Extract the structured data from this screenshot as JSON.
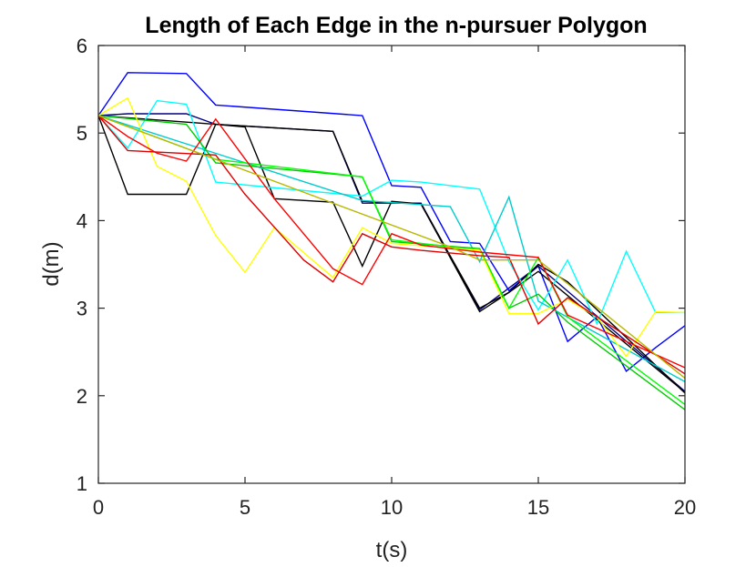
{
  "chart_data": {
    "type": "line",
    "title": "Length of Each Edge in the n-pursuer Polygon",
    "xlabel": "t(s)",
    "ylabel": "d(m)",
    "xlim": [
      0,
      20
    ],
    "ylim": [
      1,
      6
    ],
    "xticks": [
      0,
      5,
      10,
      15,
      20
    ],
    "yticks": [
      1,
      2,
      3,
      4,
      5,
      6
    ],
    "xtick_labels": [
      "0",
      "5",
      "10",
      "15",
      "20"
    ],
    "ytick_labels": [
      "1",
      "2",
      "3",
      "4",
      "5",
      "6"
    ],
    "grid": false,
    "legend": "none",
    "series": [
      {
        "color": "#0000ff",
        "points": [
          [
            0,
            5.2
          ],
          [
            1,
            5.69
          ],
          [
            3,
            5.68
          ],
          [
            4,
            5.32
          ],
          [
            9,
            5.2
          ],
          [
            10,
            4.4
          ],
          [
            11,
            4.38
          ],
          [
            12,
            3.76
          ],
          [
            13,
            3.74
          ],
          [
            14,
            3.2
          ],
          [
            15,
            3.48
          ],
          [
            16,
            2.62
          ],
          [
            17,
            2.9
          ],
          [
            18,
            2.28
          ],
          [
            19,
            2.55
          ],
          [
            20,
            2.8
          ]
        ]
      },
      {
        "color": "#000080",
        "points": [
          [
            0,
            5.2
          ],
          [
            1,
            5.22
          ],
          [
            3,
            5.22
          ],
          [
            4,
            5.1
          ],
          [
            8,
            5.02
          ],
          [
            9,
            4.2
          ],
          [
            11,
            4.2
          ],
          [
            13,
            2.98
          ],
          [
            15,
            3.48
          ],
          [
            20,
            2.05
          ]
        ]
      },
      {
        "color": "#000000",
        "points": [
          [
            0,
            5.2
          ],
          [
            1,
            4.3
          ],
          [
            3,
            4.3
          ],
          [
            4,
            5.1
          ],
          [
            8,
            5.02
          ],
          [
            9,
            4.22
          ],
          [
            11,
            4.19
          ],
          [
            13,
            2.96
          ],
          [
            14,
            3.18
          ],
          [
            15,
            3.42
          ],
          [
            20,
            2.04
          ]
        ]
      },
      {
        "color": "#000000",
        "points": [
          [
            0,
            5.2
          ],
          [
            4,
            5.1
          ],
          [
            5,
            5.07
          ],
          [
            6,
            4.25
          ],
          [
            8,
            4.21
          ],
          [
            9,
            3.48
          ],
          [
            10,
            4.22
          ],
          [
            11,
            4.19
          ],
          [
            13,
            3.0
          ],
          [
            14,
            3.18
          ],
          [
            15,
            3.5
          ],
          [
            16,
            3.3
          ],
          [
            20,
            2.03
          ]
        ]
      },
      {
        "color": "#00ffff",
        "points": [
          [
            0,
            5.2
          ],
          [
            1,
            4.83
          ],
          [
            2,
            5.37
          ],
          [
            3,
            5.33
          ],
          [
            4,
            4.44
          ],
          [
            9,
            4.28
          ],
          [
            10,
            4.46
          ],
          [
            11,
            4.44
          ],
          [
            13,
            4.36
          ],
          [
            14,
            3.53
          ],
          [
            15,
            2.98
          ],
          [
            16,
            3.55
          ],
          [
            17,
            2.82
          ],
          [
            18,
            3.65
          ],
          [
            19,
            2.95
          ],
          [
            20,
            2.95
          ]
        ]
      },
      {
        "color": "#00cccc",
        "points": [
          [
            0,
            5.2
          ],
          [
            9,
            4.23
          ],
          [
            12,
            4.16
          ],
          [
            13,
            3.53
          ],
          [
            14,
            4.27
          ],
          [
            15,
            3.08
          ],
          [
            20,
            2.16
          ]
        ]
      },
      {
        "color": "#00cc00",
        "points": [
          [
            0,
            5.2
          ],
          [
            3,
            5.1
          ],
          [
            4,
            4.66
          ],
          [
            9,
            4.5
          ],
          [
            10,
            3.76
          ],
          [
            13,
            3.68
          ],
          [
            14,
            3.0
          ],
          [
            15,
            3.16
          ],
          [
            16,
            2.84
          ],
          [
            20,
            1.84
          ]
        ]
      },
      {
        "color": "#00ff00",
        "points": [
          [
            0,
            5.2
          ],
          [
            4,
            4.7
          ],
          [
            9,
            4.5
          ],
          [
            10,
            3.78
          ],
          [
            13,
            3.66
          ],
          [
            14,
            3.0
          ],
          [
            15,
            3.58
          ],
          [
            16,
            2.9
          ],
          [
            20,
            1.9
          ]
        ]
      },
      {
        "color": "#ffff00",
        "points": [
          [
            0,
            5.2
          ],
          [
            1,
            5.4
          ],
          [
            2,
            4.62
          ],
          [
            3,
            4.45
          ],
          [
            4,
            3.83
          ],
          [
            5,
            3.41
          ],
          [
            6,
            3.92
          ],
          [
            8,
            3.35
          ],
          [
            9,
            3.92
          ],
          [
            10,
            3.74
          ],
          [
            13,
            3.66
          ],
          [
            14,
            2.94
          ],
          [
            15,
            2.94
          ],
          [
            16,
            3.1
          ],
          [
            17,
            2.9
          ],
          [
            18,
            2.45
          ],
          [
            19,
            2.96
          ],
          [
            20,
            2.95
          ]
        ]
      },
      {
        "color": "#ff0000",
        "points": [
          [
            0,
            5.2
          ],
          [
            1,
            4.96
          ],
          [
            2,
            4.77
          ],
          [
            3,
            4.68
          ],
          [
            4,
            5.16
          ],
          [
            6,
            4.25
          ],
          [
            8,
            3.45
          ],
          [
            9,
            3.27
          ],
          [
            10,
            3.85
          ],
          [
            11,
            3.72
          ],
          [
            13,
            3.64
          ],
          [
            15,
            3.58
          ],
          [
            16,
            2.92
          ],
          [
            20,
            2.32
          ]
        ]
      },
      {
        "color": "#dd0000",
        "points": [
          [
            0,
            5.2
          ],
          [
            1,
            4.8
          ],
          [
            4,
            4.75
          ],
          [
            5,
            4.3
          ],
          [
            7,
            3.55
          ],
          [
            8,
            3.3
          ],
          [
            9,
            3.85
          ],
          [
            10,
            3.7
          ],
          [
            11,
            3.66
          ],
          [
            13,
            3.6
          ],
          [
            14,
            3.58
          ],
          [
            15,
            2.82
          ],
          [
            16,
            3.12
          ],
          [
            20,
            2.25
          ]
        ]
      },
      {
        "color": "#b8b800",
        "points": [
          [
            0,
            5.2
          ],
          [
            12,
            3.7
          ],
          [
            13,
            3.55
          ],
          [
            15,
            3.55
          ],
          [
            20,
            2.2
          ]
        ]
      }
    ]
  }
}
